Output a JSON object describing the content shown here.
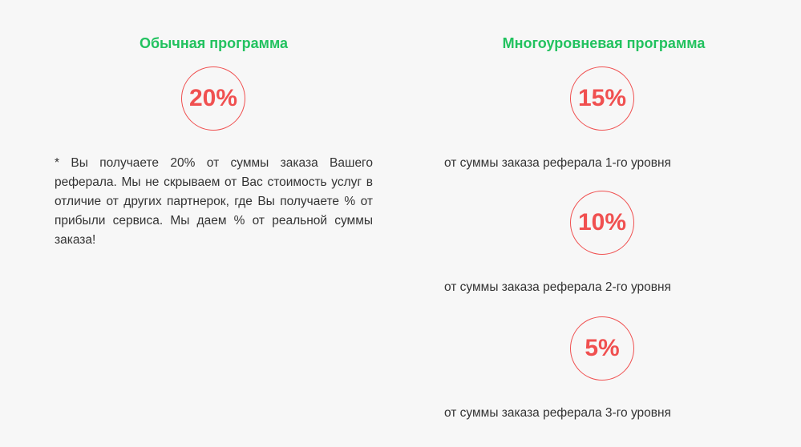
{
  "regular": {
    "title": "Обычная программа",
    "percent": "20%",
    "description": "* Вы получаете 20% от суммы заказа Вашего реферала. Мы не скрываем от Вас стоимость услуг в отличие от других партнерок, где Вы получаете % от прибыли сервиса. Мы даем % от реальной суммы заказа!"
  },
  "multilevel": {
    "title": "Многоуровневая программа",
    "levels": [
      {
        "percent": "15%",
        "caption": "от суммы заказа реферала 1-го уровня"
      },
      {
        "percent": "10%",
        "caption": "от суммы заказа реферала 2-го уровня"
      },
      {
        "percent": "5%",
        "caption": "от суммы заказа реферала 3-го уровня"
      }
    ]
  },
  "colors": {
    "accent_green": "#22c25f",
    "accent_red": "#f05050",
    "text": "#333333",
    "background": "#f7f7f7"
  }
}
